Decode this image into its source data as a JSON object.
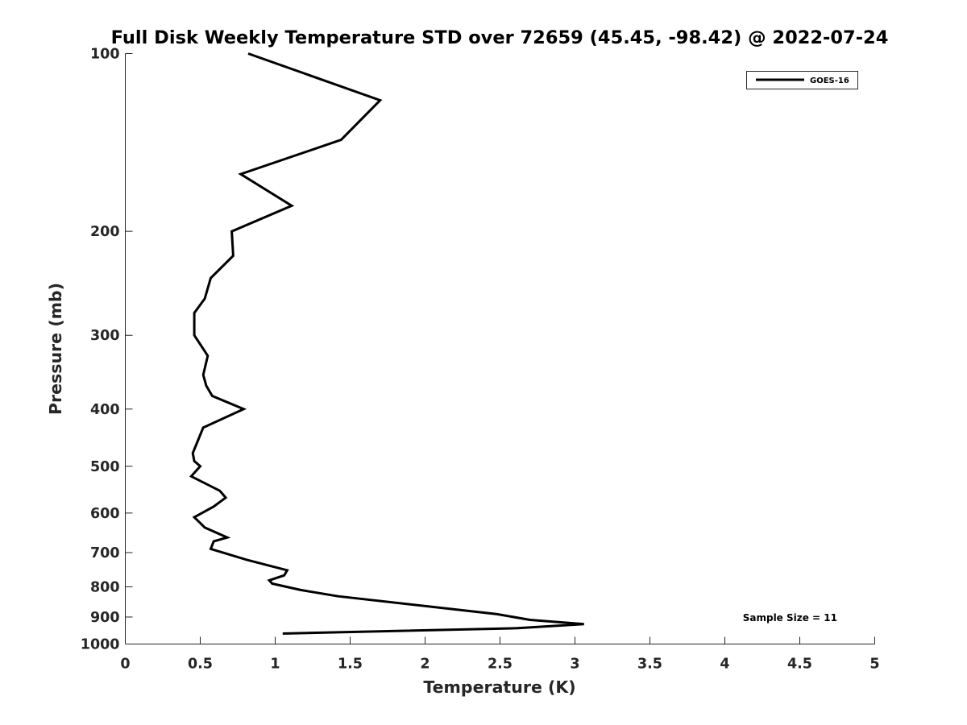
{
  "chart_data": {
    "type": "line",
    "title": "Full Disk Weekly Temperature STD over 72659 (45.45, -98.42) @ 2022-07-24",
    "xlabel": "Temperature (K)",
    "ylabel": "Pressure (mb)",
    "xlim": [
      0,
      5
    ],
    "ylim": [
      100,
      1000
    ],
    "y_scale": "log",
    "y_reversed": true,
    "x_ticks": [
      0,
      0.5,
      1,
      1.5,
      2,
      2.5,
      3,
      3.5,
      4,
      4.5,
      5
    ],
    "x_tick_labels": [
      "0",
      "0.5",
      "1",
      "1.5",
      "2",
      "2.5",
      "3",
      "3.5",
      "4",
      "4.5",
      "5"
    ],
    "y_ticks": [
      100,
      200,
      300,
      400,
      500,
      600,
      700,
      800,
      900,
      1000
    ],
    "y_tick_labels": [
      "100",
      "200",
      "300",
      "400",
      "500",
      "600",
      "700",
      "800",
      "900",
      "1000"
    ],
    "grid": false,
    "legend_position": "top-right",
    "annotation": "Sample Size = 11",
    "series": [
      {
        "name": "GOES-16",
        "color": "#000000",
        "points": [
          [
            0.82,
            100
          ],
          [
            1.7,
            120
          ],
          [
            1.44,
            140
          ],
          [
            0.77,
            160
          ],
          [
            1.11,
            181
          ],
          [
            0.71,
            200
          ],
          [
            0.72,
            220
          ],
          [
            0.57,
            240
          ],
          [
            0.53,
            260
          ],
          [
            0.46,
            275
          ],
          [
            0.46,
            300
          ],
          [
            0.55,
            325
          ],
          [
            0.52,
            350
          ],
          [
            0.54,
            365
          ],
          [
            0.58,
            380
          ],
          [
            0.79,
            400
          ],
          [
            0.52,
            430
          ],
          [
            0.45,
            475
          ],
          [
            0.46,
            490
          ],
          [
            0.5,
            500
          ],
          [
            0.44,
            520
          ],
          [
            0.63,
            550
          ],
          [
            0.67,
            565
          ],
          [
            0.59,
            585
          ],
          [
            0.46,
            610
          ],
          [
            0.53,
            635
          ],
          [
            0.68,
            660
          ],
          [
            0.59,
            670
          ],
          [
            0.57,
            690
          ],
          [
            0.81,
            720
          ],
          [
            1.08,
            750
          ],
          [
            1.06,
            765
          ],
          [
            0.96,
            780
          ],
          [
            0.98,
            790
          ],
          [
            1.17,
            810
          ],
          [
            1.42,
            830
          ],
          [
            2.48,
            890
          ],
          [
            2.7,
            910
          ],
          [
            3.06,
            925
          ],
          [
            2.62,
            940
          ],
          [
            1.05,
            960
          ]
        ]
      }
    ]
  }
}
